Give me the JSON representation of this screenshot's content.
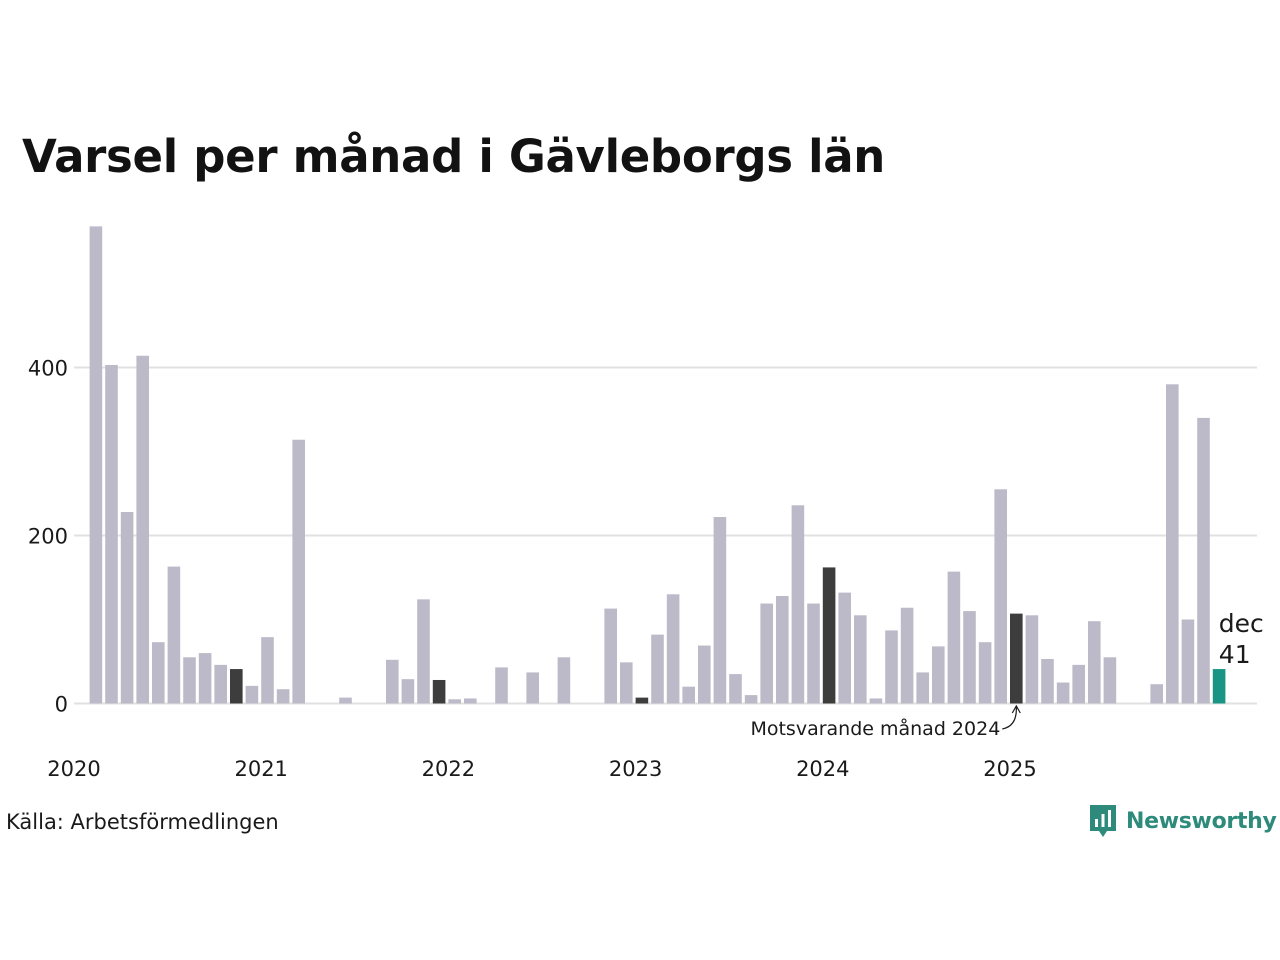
{
  "chart_data": {
    "type": "bar",
    "title": "Varsel per månad i Gävleborgs län",
    "source": "Källa: Arbetsförmedlingen",
    "brand": "Newsworthy",
    "xlabel": "",
    "ylabel": "",
    "ylim": [
      0,
      570
    ],
    "yticks": [
      0,
      200,
      400
    ],
    "year_labels": [
      "2020",
      "2021",
      "2022",
      "2023",
      "2024",
      "2025"
    ],
    "start": {
      "year": 2020,
      "month": 1
    },
    "values": [
      0,
      568,
      403,
      228,
      414,
      73,
      163,
      55,
      60,
      46,
      41,
      21,
      79,
      17,
      314,
      0,
      0,
      7,
      0,
      0,
      52,
      29,
      124,
      28,
      5,
      6,
      0,
      43,
      0,
      37,
      0,
      55,
      0,
      0,
      113,
      49,
      7,
      82,
      130,
      20,
      69,
      222,
      35,
      10,
      119,
      128,
      236,
      119,
      162,
      132,
      105,
      6,
      87,
      114,
      37,
      68,
      157,
      110,
      73,
      255,
      107,
      105,
      53,
      25,
      46,
      98,
      55,
      0,
      0,
      23,
      380,
      100,
      340,
      41
    ],
    "compare_months_indices": [
      10,
      23,
      36,
      48,
      60
    ],
    "highlight": {
      "label": "dec",
      "value": "41"
    },
    "annotation": "Motsvarande månad 2024",
    "colors": {
      "bar": "#bcbac8",
      "compare": "#3d3d3d",
      "highlight": "#1a9585",
      "grid": "#e1e1e1",
      "brand": "#2e8b7c"
    }
  }
}
